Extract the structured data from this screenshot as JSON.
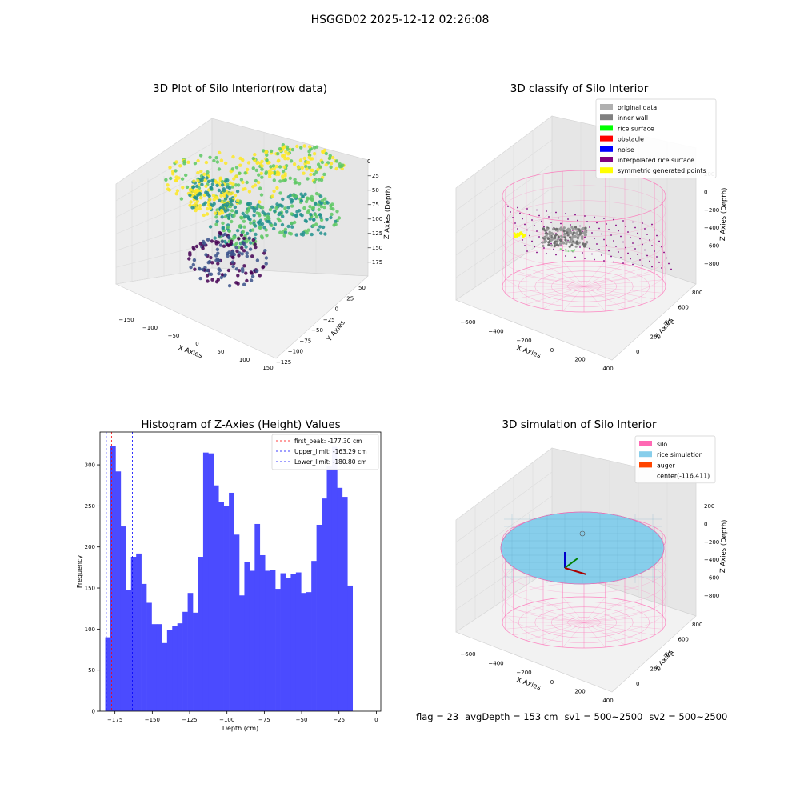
{
  "figure": {
    "suptitle": "HSGGD02 2025-12-12 02:26:08"
  },
  "panel1": {
    "title": "3D Plot of Silo Interior(row data)",
    "xlabel": "X Axies",
    "ylabel": "Y Axies",
    "zlabel": "Z Axies (Depth)",
    "xticks": [
      "−150",
      "−100",
      "−50",
      "0",
      "50",
      "100",
      "150"
    ],
    "yticks": [
      "50",
      "25",
      "0",
      "−25",
      "−50",
      "−75",
      "−100",
      "−125"
    ],
    "zticks": [
      "0",
      "−25",
      "−50",
      "−75",
      "−100",
      "−125",
      "−150",
      "−175"
    ],
    "colormap": [
      "#440154",
      "#3b528b",
      "#21908d",
      "#5dc863",
      "#fde725"
    ]
  },
  "panel2": {
    "title": "3D classify of Silo Interior",
    "xlabel": "X Axies",
    "ylabel": "Y Axies",
    "zlabel": "Z Axies (Depth)",
    "xticks": [
      "−600",
      "−400",
      "−200",
      "0",
      "200",
      "400"
    ],
    "yticks": [
      "800",
      "600",
      "400",
      "200",
      "0"
    ],
    "zticks": [
      "200",
      "0",
      "−200",
      "−400",
      "−600",
      "−800"
    ],
    "legend": [
      {
        "label": "original data",
        "color": "#b0b0b0"
      },
      {
        "label": "inner wall",
        "color": "#808080"
      },
      {
        "label": "rice surface",
        "color": "#00ff00"
      },
      {
        "label": "obstacle",
        "color": "#ff0000"
      },
      {
        "label": "noise",
        "color": "#0000ff"
      },
      {
        "label": "interpolated rice surface",
        "color": "#800080"
      },
      {
        "label": "symmetric generated points",
        "color": "#ffff00"
      }
    ],
    "wire_color": "#ff69b4"
  },
  "panel3": {
    "title": "Histogram of Z-Axies (Height) Values",
    "xlabel": "Depth (cm)",
    "ylabel": "Frequency",
    "bar_color": "#4b4bff"
  },
  "panel4": {
    "title": "3D simulation of Silo Interior",
    "xlabel": "X Axies",
    "ylabel": "Y Axies",
    "zlabel": "Z Axies (Depth)",
    "xticks": [
      "−600",
      "−400",
      "−200",
      "0",
      "200",
      "400"
    ],
    "yticks": [
      "800",
      "600",
      "400",
      "200",
      "0"
    ],
    "zticks": [
      "200",
      "0",
      "−200",
      "−400",
      "−600",
      "−800"
    ],
    "legend": [
      {
        "label": "silo",
        "color": "#ff69b4"
      },
      {
        "label": "rice simulation",
        "color": "#87ceeb"
      },
      {
        "label": "auger",
        "color": "#ff4500"
      },
      {
        "label": "center(-116,411)",
        "color": ""
      }
    ]
  },
  "footer": {
    "flag": "flag = 23",
    "avg_depth": "avgDepth = 153 cm",
    "sv1": "sv1 = 500~2500",
    "sv2": "sv2 = 500~2500"
  },
  "chart_data": {
    "type": "bar",
    "title": "Histogram of Z-Axies (Height) Values",
    "xlabel": "Depth (cm)",
    "ylabel": "Frequency",
    "xlim": [
      -185,
      3
    ],
    "ylim": [
      0,
      340
    ],
    "xticks": [
      -175,
      -150,
      -125,
      -100,
      -75,
      -50,
      -25,
      0
    ],
    "yticks": [
      0,
      50,
      100,
      150,
      200,
      250,
      300
    ],
    "bin_start": -181.5,
    "bin_width": 3.45,
    "values": [
      90,
      323,
      292,
      225,
      148,
      188,
      192,
      155,
      132,
      106,
      106,
      83,
      99,
      104,
      107,
      121,
      144,
      120,
      188,
      315,
      314,
      275,
      255,
      250,
      266,
      215,
      141,
      182,
      171,
      228,
      190,
      171,
      172,
      149,
      168,
      162,
      167,
      169,
      144,
      145,
      183,
      227,
      259,
      298,
      322,
      272,
      261,
      153
    ],
    "reference_lines": [
      {
        "name": "first_peak: -177.30 cm",
        "x": -177.3,
        "color": "#ff0000"
      },
      {
        "name": "Upper_limit: -163.29 cm",
        "x": -163.29,
        "color": "#0000ff"
      },
      {
        "name": "Lower_limit: -180.80 cm",
        "x": -180.8,
        "color": "#0000ff"
      }
    ]
  }
}
